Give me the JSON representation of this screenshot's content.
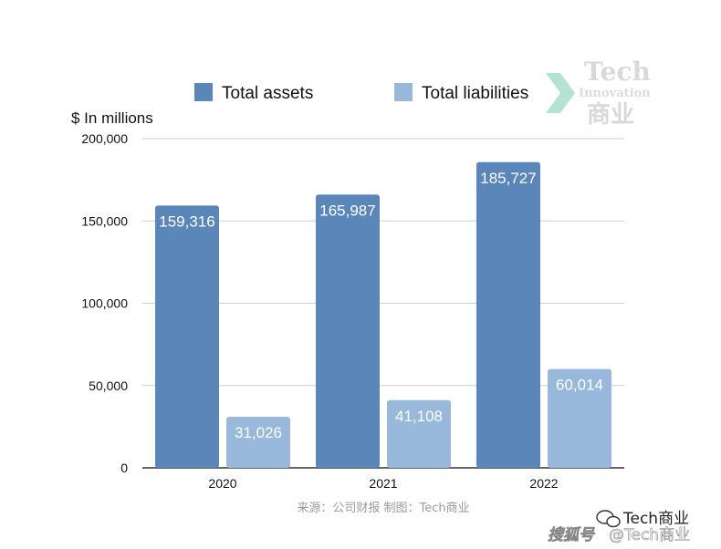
{
  "chart_data": {
    "type": "bar",
    "categories": [
      "2020",
      "2021",
      "2022"
    ],
    "series": [
      {
        "name": "Total assets",
        "values": [
          159316,
          165987,
          185727
        ],
        "labels": [
          "159,316",
          "165,987",
          "185,727"
        ]
      },
      {
        "name": "Total liabilities",
        "values": [
          31026,
          41108,
          60014
        ],
        "labels": [
          "31,026",
          "41,108",
          "60,014"
        ]
      }
    ],
    "title": "",
    "xlabel": "",
    "ylabel": "$ In millions",
    "ylim": [
      0,
      200000
    ],
    "yticks": [
      {
        "value": 0,
        "label": "0"
      },
      {
        "value": 50000,
        "label": "50,000"
      },
      {
        "value": 100000,
        "label": "100,000"
      },
      {
        "value": 150000,
        "label": "150,000"
      },
      {
        "value": 200000,
        "label": "200,000"
      }
    ],
    "grid": true,
    "legend_position": "top",
    "colors": {
      "series": [
        "#5b86b9",
        "#98b9dc"
      ],
      "grid": "#cfcfcf",
      "axis": "#333333"
    },
    "source": "来源：公司财报 制图：Tech商业"
  },
  "watermark": {
    "line1": "Tech",
    "line2": "Innovation",
    "line3": "商业",
    "icon": "chevron-arrow-icon",
    "color": "#d9d9d9",
    "accent": "#b5e3d2"
  },
  "credit": {
    "account": "Tech商业",
    "platform_logo": "搜狐号",
    "handle": "@Tech商业",
    "icon": "wechat-icon"
  }
}
